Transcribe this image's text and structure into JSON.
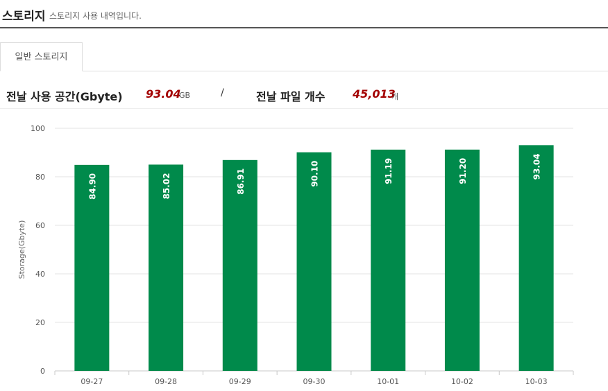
{
  "header": {
    "title": "스토리지",
    "subtitle": "스토리지 사용 내역입니다."
  },
  "tabs": [
    {
      "label": "일반 스토리지",
      "active": true
    }
  ],
  "summary": {
    "space_label": "전날 사용 공간(Gbyte)",
    "space_value": "93.04",
    "space_unit": "GB",
    "separator": "/",
    "files_label": "전날 파일 개수",
    "files_value": "45,013",
    "files_unit": "개"
  },
  "colors": {
    "bar": "#008a4b",
    "value_highlight": "#a30000",
    "grid": "#e3e3e3"
  },
  "chart_data": {
    "type": "bar",
    "categories": [
      "09-27",
      "09-28",
      "09-29",
      "09-30",
      "10-01",
      "10-02",
      "10-03"
    ],
    "values": [
      84.9,
      85.02,
      86.91,
      90.1,
      91.19,
      91.2,
      93.04
    ],
    "value_labels": [
      "84.90",
      "85.02",
      "86.91",
      "90.10",
      "91.19",
      "91.20",
      "93.04"
    ],
    "ylabel": "Storage(Gbyte)",
    "xlabel": "",
    "ylim": [
      0,
      100
    ],
    "yticks": [
      0,
      20,
      40,
      60,
      80,
      100
    ],
    "grid": true,
    "legend": "none"
  }
}
